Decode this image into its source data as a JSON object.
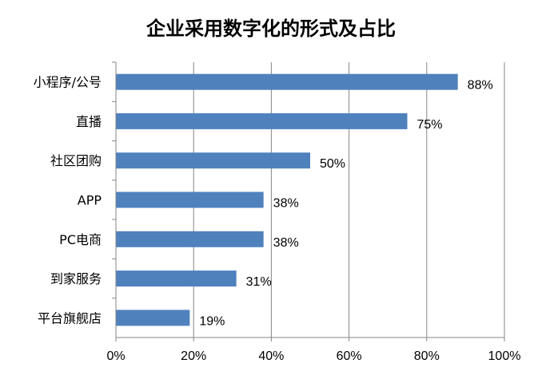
{
  "chart_data": {
    "type": "bar",
    "orientation": "horizontal",
    "title": "企业采用数字化的形式及占比",
    "categories": [
      "小程序/公号",
      "直播",
      "社区团购",
      "APP",
      "PC电商",
      "到家服务",
      "平台旗舰店"
    ],
    "values": [
      88,
      75,
      50,
      38,
      38,
      31,
      19
    ],
    "value_labels": [
      "88%",
      "75%",
      "50%",
      "38%",
      "38%",
      "31%",
      "19%"
    ],
    "xlim": [
      0,
      100
    ],
    "x_ticks": [
      "0%",
      "20%",
      "40%",
      "60%",
      "80%",
      "100%"
    ],
    "grid": true,
    "legend": "none",
    "bar_color": "#4F81BD",
    "grid_color": "#868686"
  }
}
